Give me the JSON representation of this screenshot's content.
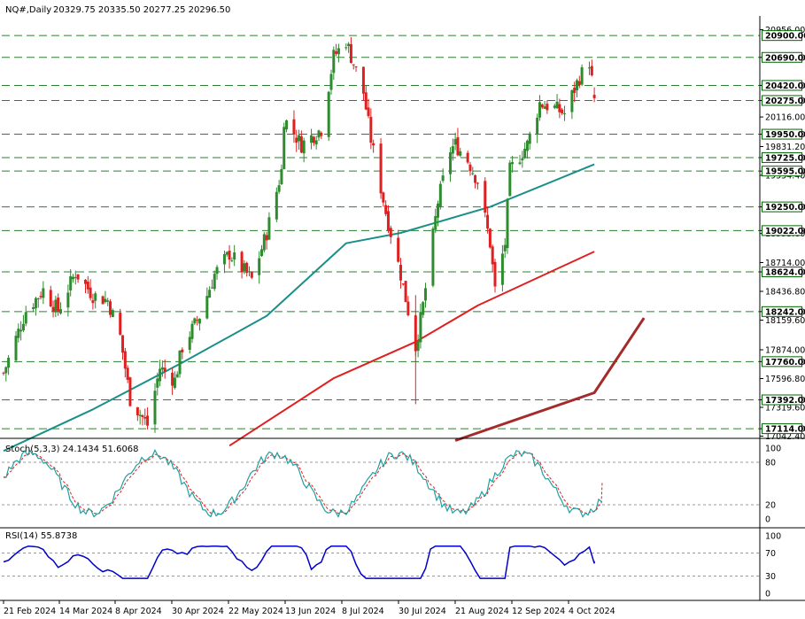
{
  "header": {
    "symbol": "NQ#,Daily",
    "ohlc": "20329.75 20335.50 20277.25 20296.50"
  },
  "colors": {
    "up": "#2e8b2e",
    "down": "#e02020",
    "ma_teal": "#1a8f8a",
    "ma_red": "#e02020",
    "trendline": "#a52a2a",
    "level_line": "#2e7d32",
    "tag_bg": "#006400",
    "stoch_main": "#20a0a0",
    "stoch_signal": "#e02020",
    "rsi": "#0000cc"
  },
  "price_axis": {
    "ticks": [
      "20956.00",
      "20690.00",
      "20420.00",
      "20275.00",
      "20116.00",
      "19950.00",
      "19831.20",
      "19725.00",
      "19595.00",
      "19554.40",
      "19250.00",
      "19022.00",
      "18993.60",
      "18714.00",
      "18624.00",
      "18436.80",
      "18242.00",
      "18159.60",
      "17874.00",
      "17760.00",
      "17596.80",
      "17392.00",
      "17319.60",
      "17114.00",
      "17042.40"
    ]
  },
  "levels": [
    "20900.00",
    "20690.00",
    "20420.00",
    "20275.00",
    "19950.00",
    "19725.00",
    "19595.00",
    "19250.00",
    "19022.00",
    "18624.00",
    "18242.00",
    "17760.00",
    "17392.00",
    "17114.00"
  ],
  "x_axis": {
    "labels": [
      "21 Feb 2024",
      "14 Mar 2024",
      "8 Apr 2024",
      "30 Apr 2024",
      "22 May 2024",
      "13 Jun 2024",
      "8 Jul 2024",
      "30 Jul 2024",
      "21 Aug 2024",
      "12 Sep 2024",
      "4 Oct 2024"
    ]
  },
  "stoch": {
    "label": "Stoch(5,3,3) 24.1434 51.6068",
    "ticks": [
      "100",
      "80",
      "20",
      "0"
    ]
  },
  "rsi": {
    "label": "RSI(14) 55.8738",
    "ticks": [
      "100",
      "70",
      "30",
      "0"
    ]
  },
  "chart_data": {
    "type": "candlestick",
    "symbol": "NQ#",
    "timeframe": "Daily",
    "last_bar": {
      "open": 20329.75,
      "high": 20335.5,
      "low": 20277.25,
      "close": 20296.5
    },
    "horizontal_levels": [
      20900,
      20690,
      20420,
      20275,
      19950,
      19725,
      19595,
      19250,
      19022,
      18624,
      18242,
      17760,
      17392,
      17114
    ],
    "price_range": [
      17000,
      21100
    ],
    "close_series": [
      {
        "date": "2024-02-21",
        "close": 17650
      },
      {
        "date": "2024-03-01",
        "close": 18250
      },
      {
        "date": "2024-03-08",
        "close": 18450
      },
      {
        "date": "2024-03-14",
        "close": 18250
      },
      {
        "date": "2024-03-21",
        "close": 18620
      },
      {
        "date": "2024-03-28",
        "close": 18400
      },
      {
        "date": "2024-04-03",
        "close": 18350
      },
      {
        "date": "2024-04-08",
        "close": 18000
      },
      {
        "date": "2024-04-12",
        "close": 17400
      },
      {
        "date": "2024-04-19",
        "close": 17150
      },
      {
        "date": "2024-04-24",
        "close": 17700
      },
      {
        "date": "2024-04-30",
        "close": 17580
      },
      {
        "date": "2024-05-03",
        "close": 17900
      },
      {
        "date": "2024-05-10",
        "close": 18200
      },
      {
        "date": "2024-05-16",
        "close": 18600
      },
      {
        "date": "2024-05-22",
        "close": 18800
      },
      {
        "date": "2024-05-31",
        "close": 18550
      },
      {
        "date": "2024-06-06",
        "close": 19000
      },
      {
        "date": "2024-06-12",
        "close": 19600
      },
      {
        "date": "2024-06-13",
        "close": 20100
      },
      {
        "date": "2024-06-20",
        "close": 19850
      },
      {
        "date": "2024-06-28",
        "close": 20000
      },
      {
        "date": "2024-07-03",
        "close": 20700
      },
      {
        "date": "2024-07-08",
        "close": 20850
      },
      {
        "date": "2024-07-10",
        "close": 20700
      },
      {
        "date": "2024-07-15",
        "close": 20350
      },
      {
        "date": "2024-07-18",
        "close": 19900
      },
      {
        "date": "2024-07-24",
        "close": 19200
      },
      {
        "date": "2024-07-26",
        "close": 19000
      },
      {
        "date": "2024-07-30",
        "close": 18600
      },
      {
        "date": "2024-08-05",
        "close": 17900
      },
      {
        "date": "2024-08-08",
        "close": 18300
      },
      {
        "date": "2024-08-14",
        "close": 19300
      },
      {
        "date": "2024-08-19",
        "close": 19800
      },
      {
        "date": "2024-08-21",
        "close": 19850
      },
      {
        "date": "2024-08-26",
        "close": 19700
      },
      {
        "date": "2024-08-30",
        "close": 19500
      },
      {
        "date": "2024-09-04",
        "close": 18900
      },
      {
        "date": "2024-09-06",
        "close": 18450
      },
      {
        "date": "2024-09-10",
        "close": 18900
      },
      {
        "date": "2024-09-12",
        "close": 19600
      },
      {
        "date": "2024-09-19",
        "close": 19850
      },
      {
        "date": "2024-09-24",
        "close": 20250
      },
      {
        "date": "2024-09-30",
        "close": 20200
      },
      {
        "date": "2024-10-04",
        "close": 20150
      },
      {
        "date": "2024-10-10",
        "close": 20500
      },
      {
        "date": "2024-10-14",
        "close": 20650
      },
      {
        "date": "2024-10-16",
        "close": 20296.5
      }
    ],
    "ma_teal": [
      {
        "date": "2024-02-21",
        "value": 16900
      },
      {
        "date": "2024-03-28",
        "value": 17300
      },
      {
        "date": "2024-05-03",
        "value": 17750
      },
      {
        "date": "2024-06-06",
        "value": 18200
      },
      {
        "date": "2024-07-08",
        "value": 18900
      },
      {
        "date": "2024-07-30",
        "value": 19000
      },
      {
        "date": "2024-09-04",
        "value": 19250
      },
      {
        "date": "2024-10-16",
        "value": 19660
      }
    ],
    "ma_red": [
      {
        "date": "2024-05-22",
        "value": 16950
      },
      {
        "date": "2024-07-03",
        "value": 17600
      },
      {
        "date": "2024-08-05",
        "value": 17950
      },
      {
        "date": "2024-08-30",
        "value": 18300
      },
      {
        "date": "2024-10-16",
        "value": 18820
      }
    ],
    "trendline": [
      {
        "date": "2024-08-21",
        "value": 17000
      },
      {
        "date": "2024-10-16",
        "value": 17460
      },
      {
        "date": "2024-11-05",
        "value": 18180
      }
    ],
    "stochastic": {
      "params": "5,3,3",
      "main": 24.1434,
      "signal": 51.6068,
      "range": [
        0,
        100
      ],
      "levels": [
        80,
        20
      ]
    },
    "rsi": {
      "period": 14,
      "value": 55.8738,
      "range": [
        0,
        100
      ],
      "levels": [
        70,
        30
      ]
    }
  }
}
